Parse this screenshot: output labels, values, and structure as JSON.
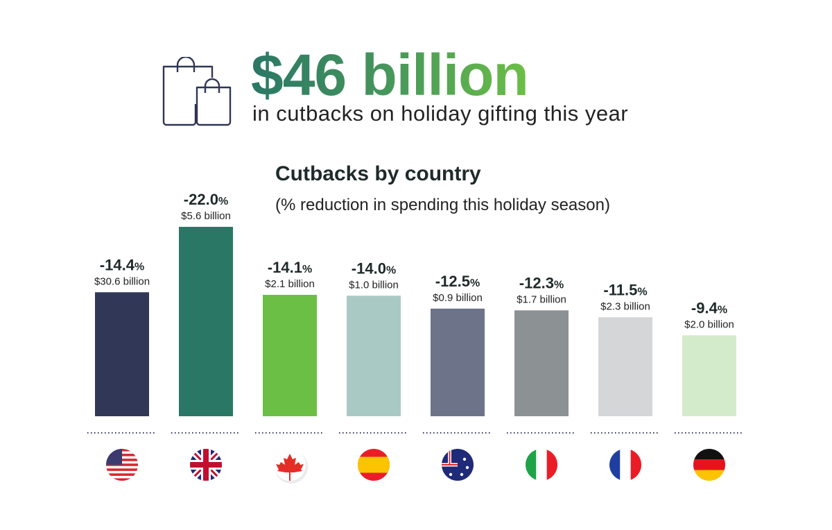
{
  "header": {
    "headline": "$46 billion",
    "subtitle": "in cutbacks on holiday gifting this year",
    "icon": "shopping-bags-icon"
  },
  "chart_data": {
    "type": "bar",
    "title": "Cutbacks by country",
    "subtitle": "(% reduction in spending this holiday season)",
    "categories": [
      "United States",
      "United Kingdom",
      "Canada",
      "Spain",
      "Australia",
      "Italy",
      "France",
      "Germany"
    ],
    "values": [
      -14.4,
      -22.0,
      -14.1,
      -14.0,
      -12.5,
      -12.3,
      -11.5,
      -9.4
    ],
    "value_labels": [
      "-14.4",
      "-22.0",
      "-14.1",
      "-14.0",
      "-12.5",
      "-12.3",
      "-11.5",
      "-9.4"
    ],
    "percent_sign": "%",
    "amounts": [
      "$30.6 billion",
      "$5.6 billion",
      "$2.1 billion",
      "$1.0 billion",
      "$0.9 billion",
      "$1.7 billion",
      "$2.3 billion",
      "$2.0 billion"
    ],
    "colors": [
      "#313756",
      "#2a7766",
      "#6cbf45",
      "#a9cac4",
      "#6d7389",
      "#8c9194",
      "#d4d6d8",
      "#d4ebcb"
    ],
    "flags": [
      "us-flag-icon",
      "uk-flag-icon",
      "canada-flag-icon",
      "spain-flag-icon",
      "australia-flag-icon",
      "italy-flag-icon",
      "france-flag-icon",
      "germany-flag-icon"
    ],
    "ylim": [
      0,
      -22.0
    ]
  }
}
